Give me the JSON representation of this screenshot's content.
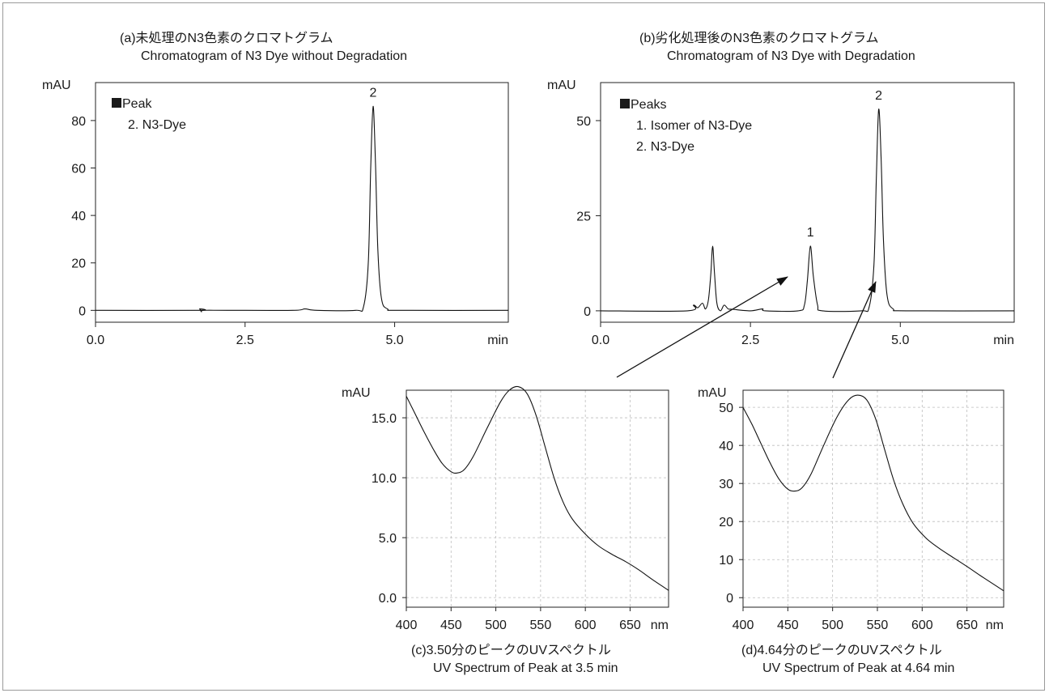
{
  "captions": {
    "a": {
      "line1": "(a)未処理のN3色素のクロマトグラム",
      "line2": "Chromatogram of N3 Dye without Degradation"
    },
    "b": {
      "line1": "(b)劣化処理後のN3色素のクロマトグラム",
      "line2": "Chromatogram of N3 Dye with Degradation"
    },
    "c": {
      "line1": "(c)3.50分のピークのUVスペクトル",
      "line2": "UV Spectrum of Peak at 3.5 min"
    },
    "d": {
      "line1": "(d)4.64分のピークのUVスペクトル",
      "line2": "UV Spectrum of Peak at 4.64 min"
    }
  },
  "chart_data": [
    {
      "id": "a",
      "type": "line",
      "xlabel": "min",
      "ylabel": "mAU",
      "xlim": [
        0.0,
        6.9
      ],
      "ylim": [
        -5,
        96
      ],
      "xticks": [
        "0.0",
        "2.5",
        "5.0"
      ],
      "yticks": [
        "0",
        "20",
        "40",
        "60",
        "80"
      ],
      "grid": false,
      "legend": {
        "title": "Peak",
        "entries": [
          "2. N3-Dye"
        ],
        "position": "top-left"
      },
      "peak_labels": [
        {
          "label": "2",
          "x": 4.64,
          "y": 86
        }
      ],
      "series": [
        {
          "points": [
            [
              0.0,
              0
            ],
            [
              1.7,
              0
            ],
            [
              1.74,
              0.6
            ],
            [
              1.77,
              -0.6
            ],
            [
              1.81,
              0
            ],
            [
              2.2,
              0
            ],
            [
              3.3,
              0
            ],
            [
              3.5,
              0.6
            ],
            [
              3.7,
              0
            ],
            [
              4.35,
              0
            ],
            [
              4.48,
              1.5
            ],
            [
              4.56,
              20
            ],
            [
              4.6,
              60
            ],
            [
              4.64,
              86
            ],
            [
              4.68,
              62
            ],
            [
              4.72,
              25
            ],
            [
              4.78,
              5
            ],
            [
              4.88,
              0.6
            ],
            [
              5.1,
              0
            ],
            [
              6.9,
              0
            ]
          ]
        }
      ]
    },
    {
      "id": "b",
      "type": "line",
      "xlabel": "min",
      "ylabel": "mAU",
      "xlim": [
        0.0,
        6.9
      ],
      "ylim": [
        -3,
        60
      ],
      "xticks": [
        "0.0",
        "2.5",
        "5.0"
      ],
      "yticks": [
        "0",
        "25",
        "50"
      ],
      "grid": false,
      "legend": {
        "title": "Peaks",
        "entries": [
          "1. Isomer of N3-Dye",
          "2. N3-Dye"
        ],
        "position": "top-left"
      },
      "peak_labels": [
        {
          "label": "1",
          "x": 3.5,
          "y": 17
        },
        {
          "label": "2",
          "x": 4.64,
          "y": 53
        }
      ],
      "series": [
        {
          "points": [
            [
              0.0,
              0
            ],
            [
              1.45,
              0
            ],
            [
              1.55,
              1.5
            ],
            [
              1.62,
              0.8
            ],
            [
              1.7,
              2.0
            ],
            [
              1.75,
              0.5
            ],
            [
              1.8,
              3
            ],
            [
              1.84,
              10
            ],
            [
              1.87,
              17
            ],
            [
              1.9,
              10
            ],
            [
              1.94,
              2
            ],
            [
              2.0,
              0
            ],
            [
              2.06,
              1.5
            ],
            [
              2.13,
              0.5
            ],
            [
              2.2,
              0.4
            ],
            [
              2.5,
              0
            ],
            [
              2.7,
              0.5
            ],
            [
              2.75,
              0
            ],
            [
              3.3,
              0
            ],
            [
              3.4,
              1.5
            ],
            [
              3.45,
              8
            ],
            [
              3.5,
              17
            ],
            [
              3.55,
              9
            ],
            [
              3.62,
              1.5
            ],
            [
              3.7,
              0
            ],
            [
              4.35,
              0
            ],
            [
              4.48,
              1
            ],
            [
              4.56,
              12
            ],
            [
              4.6,
              35
            ],
            [
              4.64,
              53
            ],
            [
              4.68,
              40
            ],
            [
              4.72,
              18
            ],
            [
              4.78,
              4
            ],
            [
              4.88,
              0.5
            ],
            [
              5.1,
              0
            ],
            [
              6.9,
              0
            ]
          ]
        }
      ]
    },
    {
      "id": "c",
      "type": "line",
      "xlabel": "nm",
      "ylabel": "mAU",
      "xlim": [
        400,
        693
      ],
      "ylim": [
        -0.8,
        17.3
      ],
      "xticks": [
        "400",
        "450",
        "500",
        "550",
        "600",
        "650"
      ],
      "yticks": [
        "0.0",
        "5.0",
        "10.0",
        "15.0"
      ],
      "grid": true,
      "series": [
        {
          "points": [
            [
              400,
              16.8
            ],
            [
              410,
              15.3
            ],
            [
              420,
              13.8
            ],
            [
              430,
              12.4
            ],
            [
              440,
              11.2
            ],
            [
              450,
              10.5
            ],
            [
              457,
              10.4
            ],
            [
              465,
              10.7
            ],
            [
              475,
              11.8
            ],
            [
              490,
              14.1
            ],
            [
              505,
              16.3
            ],
            [
              515,
              17.3
            ],
            [
              525,
              17.6
            ],
            [
              535,
              17.0
            ],
            [
              545,
              15.2
            ],
            [
              555,
              12.6
            ],
            [
              565,
              10.0
            ],
            [
              575,
              8.0
            ],
            [
              585,
              6.6
            ],
            [
              600,
              5.3
            ],
            [
              615,
              4.3
            ],
            [
              630,
              3.6
            ],
            [
              645,
              3.0
            ],
            [
              660,
              2.3
            ],
            [
              675,
              1.5
            ],
            [
              693,
              0.6
            ]
          ]
        }
      ]
    },
    {
      "id": "d",
      "type": "line",
      "xlabel": "nm",
      "ylabel": "mAU",
      "xlim": [
        400,
        691
      ],
      "ylim": [
        -2.5,
        54.5
      ],
      "xticks": [
        "400",
        "450",
        "500",
        "550",
        "600",
        "650"
      ],
      "yticks": [
        "0",
        "10",
        "20",
        "30",
        "40",
        "50"
      ],
      "grid": true,
      "series": [
        {
          "points": [
            [
              400,
              50
            ],
            [
              410,
              45.5
            ],
            [
              420,
              40.5
            ],
            [
              430,
              35.5
            ],
            [
              440,
              31.2
            ],
            [
              450,
              28.5
            ],
            [
              458,
              28.0
            ],
            [
              466,
              28.9
            ],
            [
              476,
              32.5
            ],
            [
              490,
              40.0
            ],
            [
              505,
              47.5
            ],
            [
              518,
              52.0
            ],
            [
              528,
              53.2
            ],
            [
              538,
              52.0
            ],
            [
              548,
              47.0
            ],
            [
              558,
              39.0
            ],
            [
              568,
              31.0
            ],
            [
              578,
              24.8
            ],
            [
              590,
              19.5
            ],
            [
              605,
              15.5
            ],
            [
              620,
              12.8
            ],
            [
              635,
              10.5
            ],
            [
              650,
              8.2
            ],
            [
              665,
              5.8
            ],
            [
              680,
              3.5
            ],
            [
              691,
              1.8
            ]
          ]
        }
      ]
    }
  ]
}
